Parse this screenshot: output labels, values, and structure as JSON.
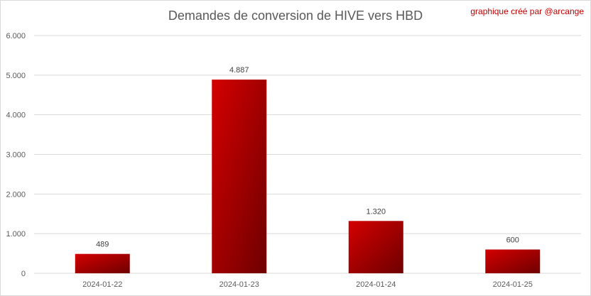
{
  "header": {
    "title": "Demandes de conversion de HIVE vers HBD",
    "credit": "graphique créé par @arcange"
  },
  "colors": {
    "bar_light": "#d40000",
    "bar_dark": "#6e0000",
    "grid": "#d9d9d9",
    "text": "#595959"
  },
  "chart_data": {
    "type": "bar",
    "title": "Demandes de conversion de HIVE vers HBD",
    "categories": [
      "2024-01-22",
      "2024-01-23",
      "2024-01-24",
      "2024-01-25"
    ],
    "values": [
      489,
      4887,
      1320,
      600
    ],
    "value_labels": [
      "489",
      "4.887",
      "1.320",
      "600"
    ],
    "ylim": [
      0,
      6000
    ],
    "yticks": [
      0,
      1000,
      2000,
      3000,
      4000,
      5000,
      6000
    ],
    "ytick_labels": [
      "0",
      "1.000",
      "2.000",
      "3.000",
      "4.000",
      "5.000",
      "6.000"
    ],
    "xlabel": "",
    "ylabel": "",
    "grid": true,
    "legend": "none"
  }
}
